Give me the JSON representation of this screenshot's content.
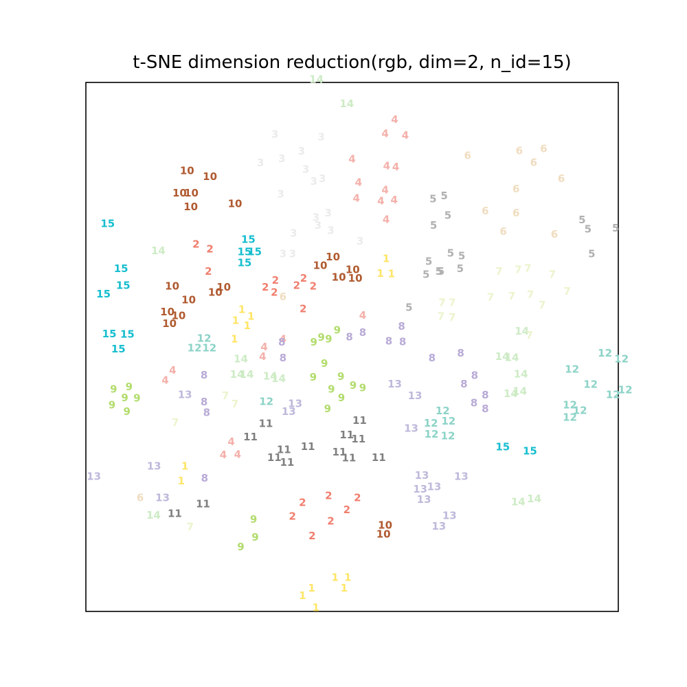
{
  "chart_data": {
    "type": "scatter",
    "title": "t-SNE dimension reduction(rgb, dim=2, n_id=15)",
    "xlabel": "",
    "ylabel": "",
    "xlim": [
      0,
      100
    ],
    "ylim": [
      0,
      100
    ],
    "grid": false,
    "legend": "none",
    "colors": {
      "1": "#ffe566",
      "2": "#f07e6e",
      "3": "#ebebeb",
      "4": "#f4b0aa",
      "5": "#b0b0b0",
      "6": "#f0ddc0",
      "7": "#ebf4cd",
      "8": "#b8aad6",
      "9": "#b2dc6c",
      "10": "#b05a30",
      "11": "#7f7f7f",
      "12": "#8cd3c7",
      "13": "#beb9db",
      "14": "#cdebc5",
      "15": "#17becf"
    },
    "points": [
      [
        "14",
        43.3,
        100.6
      ],
      [
        "14",
        49.0,
        96.0
      ],
      [
        "4",
        58.0,
        93.0
      ],
      [
        "4",
        56.2,
        90.3
      ],
      [
        "4",
        60.0,
        90.0
      ],
      [
        "4",
        50.0,
        85.5
      ],
      [
        "4",
        56.5,
        84.2
      ],
      [
        "4",
        58.2,
        84.0
      ],
      [
        "4",
        51.2,
        81.1
      ],
      [
        "4",
        56.2,
        79.7
      ],
      [
        "4",
        50.8,
        78.1
      ],
      [
        "4",
        55.4,
        77.6
      ],
      [
        "4",
        57.9,
        77.8
      ],
      [
        "4",
        56.4,
        74.1
      ],
      [
        "3",
        35.5,
        90.2
      ],
      [
        "3",
        44.2,
        89.7
      ],
      [
        "3",
        40.5,
        87.0
      ],
      [
        "3",
        32.8,
        84.8
      ],
      [
        "3",
        36.8,
        85.6
      ],
      [
        "3",
        41.3,
        83.6
      ],
      [
        "3",
        44.4,
        81.8
      ],
      [
        "3",
        42.8,
        81.3
      ],
      [
        "3",
        36.6,
        78.9
      ],
      [
        "3",
        45.5,
        75.3
      ],
      [
        "3",
        43.2,
        74.5
      ],
      [
        "3",
        39.0,
        71.5
      ],
      [
        "3",
        43.6,
        73.0
      ],
      [
        "3",
        46.0,
        72.0
      ],
      [
        "3",
        51.5,
        70.0
      ],
      [
        "3",
        37.0,
        67.6
      ],
      [
        "3",
        38.8,
        67.6
      ],
      [
        "3",
        46.8,
        63.1
      ],
      [
        "3",
        48.3,
        63.3
      ],
      [
        "6",
        71.7,
        86.2
      ],
      [
        "6",
        81.4,
        87.1
      ],
      [
        "6",
        86.0,
        87.5
      ],
      [
        "6",
        84.1,
        84.9
      ],
      [
        "6",
        89.3,
        81.8
      ],
      [
        "6",
        80.8,
        79.9
      ],
      [
        "6",
        75.0,
        75.7
      ],
      [
        "6",
        80.8,
        75.3
      ],
      [
        "6",
        78.4,
        71.8
      ],
      [
        "6",
        88.0,
        71.3
      ],
      [
        "6",
        37.0,
        59.5
      ],
      [
        "6",
        10.2,
        21.5
      ],
      [
        "10",
        19.0,
        83.3
      ],
      [
        "10",
        23.3,
        82.2
      ],
      [
        "10",
        17.6,
        79.1
      ],
      [
        "10",
        19.8,
        79.1
      ],
      [
        "10",
        19.7,
        76.5
      ],
      [
        "10",
        28.0,
        77.1
      ],
      [
        "10",
        46.4,
        67.0
      ],
      [
        "10",
        44.0,
        65.4
      ],
      [
        "10",
        50.1,
        64.6
      ],
      [
        "10",
        47.5,
        63.2
      ],
      [
        "10",
        50.6,
        63.0
      ],
      [
        "10",
        16.2,
        61.5
      ],
      [
        "10",
        25.9,
        61.3
      ],
      [
        "10",
        24.3,
        60.3
      ],
      [
        "10",
        19.3,
        58.9
      ],
      [
        "10",
        15.3,
        56.6
      ],
      [
        "10",
        17.4,
        55.9
      ],
      [
        "10",
        15.7,
        54.4
      ],
      [
        "10",
        56.2,
        16.3
      ],
      [
        "10",
        55.9,
        14.6
      ],
      [
        "5",
        65.2,
        78.0
      ],
      [
        "5",
        67.3,
        78.6
      ],
      [
        "5",
        68.0,
        74.9
      ],
      [
        "5",
        65.3,
        73.0
      ],
      [
        "5",
        93.2,
        74.0
      ],
      [
        "5",
        94.3,
        72.3
      ],
      [
        "5",
        99.5,
        72.5
      ],
      [
        "5",
        68.5,
        67.7
      ],
      [
        "5",
        70.6,
        67.2
      ],
      [
        "5",
        64.4,
        66.2
      ],
      [
        "5",
        66.3,
        64.3
      ],
      [
        "5",
        70.3,
        64.8
      ],
      [
        "5",
        63.9,
        63.7
      ],
      [
        "5",
        66.7,
        64.3
      ],
      [
        "5",
        60.7,
        57.5
      ],
      [
        "5",
        95.0,
        67.6
      ],
      [
        "15",
        4.1,
        73.3
      ],
      [
        "15",
        30.5,
        70.3
      ],
      [
        "15",
        29.8,
        68.0
      ],
      [
        "15",
        31.7,
        68.0
      ],
      [
        "15",
        29.8,
        65.9
      ],
      [
        "15",
        6.6,
        64.8
      ],
      [
        "15",
        7.0,
        61.6
      ],
      [
        "15",
        3.3,
        60.0
      ],
      [
        "15",
        4.4,
        52.5
      ],
      [
        "15",
        7.8,
        52.4
      ],
      [
        "15",
        6.1,
        49.6
      ],
      [
        "15",
        78.3,
        31.1
      ],
      [
        "15",
        83.4,
        30.3
      ],
      [
        "14",
        13.6,
        68.2
      ],
      [
        "14",
        81.9,
        53.0
      ],
      [
        "14",
        78.2,
        48.2
      ],
      [
        "14",
        80.0,
        48.0
      ],
      [
        "14",
        29.1,
        47.7
      ],
      [
        "14",
        28.4,
        44.8
      ],
      [
        "14",
        30.2,
        44.8
      ],
      [
        "14",
        34.6,
        44.5
      ],
      [
        "14",
        36.2,
        44.0
      ],
      [
        "14",
        81.7,
        44.9
      ],
      [
        "14",
        79.8,
        41.2
      ],
      [
        "14",
        81.5,
        41.6
      ],
      [
        "14",
        81.2,
        20.7
      ],
      [
        "14",
        84.2,
        21.3
      ],
      [
        "14",
        12.7,
        18.2
      ],
      [
        "2",
        20.7,
        69.4
      ],
      [
        "2",
        23.3,
        68.5
      ],
      [
        "2",
        23.0,
        64.3
      ],
      [
        "2",
        33.7,
        61.3
      ],
      [
        "2",
        35.6,
        62.6
      ],
      [
        "2",
        35.4,
        60.3
      ],
      [
        "2",
        39.6,
        61.6
      ],
      [
        "2",
        40.9,
        63.0
      ],
      [
        "2",
        42.7,
        61.5
      ],
      [
        "2",
        40.8,
        57.2
      ],
      [
        "2",
        51.0,
        21.5
      ],
      [
        "2",
        45.6,
        21.9
      ],
      [
        "2",
        40.7,
        20.6
      ],
      [
        "2",
        49.0,
        19.2
      ],
      [
        "2",
        38.8,
        18.0
      ],
      [
        "2",
        46.0,
        17.1
      ],
      [
        "2",
        42.5,
        14.3
      ],
      [
        "1",
        56.4,
        66.7
      ],
      [
        "1",
        55.3,
        63.9
      ],
      [
        "1",
        57.4,
        63.8
      ],
      [
        "1",
        29.3,
        57.1
      ],
      [
        "1",
        31.0,
        55.8
      ],
      [
        "1",
        28.1,
        55.0
      ],
      [
        "1",
        30.3,
        54.0
      ],
      [
        "1",
        27.9,
        51.5
      ],
      [
        "1",
        18.6,
        27.5
      ],
      [
        "1",
        17.9,
        24.7
      ],
      [
        "1",
        46.8,
        6.4
      ],
      [
        "1",
        49.2,
        6.4
      ],
      [
        "1",
        42.4,
        4.4
      ],
      [
        "1",
        48.5,
        4.4
      ],
      [
        "1",
        40.7,
        3.0
      ],
      [
        "1",
        43.2,
        0.7
      ],
      [
        "7",
        77.6,
        64.3
      ],
      [
        "7",
        81.2,
        64.6
      ],
      [
        "7",
        83.0,
        64.9
      ],
      [
        "7",
        87.6,
        63.7
      ],
      [
        "7",
        66.9,
        58.4
      ],
      [
        "7",
        68.8,
        58.4
      ],
      [
        "7",
        76.0,
        59.4
      ],
      [
        "7",
        80.0,
        59.6
      ],
      [
        "7",
        83.5,
        59.9
      ],
      [
        "7",
        90.4,
        60.5
      ],
      [
        "7",
        85.7,
        57.9
      ],
      [
        "7",
        66.7,
        55.8
      ],
      [
        "7",
        68.8,
        55.6
      ],
      [
        "7",
        83.3,
        52.2
      ],
      [
        "7",
        26.2,
        40.8
      ],
      [
        "7",
        28.0,
        39.2
      ],
      [
        "7",
        16.8,
        35.7
      ],
      [
        "7",
        19.6,
        16.0
      ],
      [
        "4",
        52.0,
        56.0
      ],
      [
        "4",
        37.0,
        51.5
      ],
      [
        "4",
        33.5,
        50.0
      ],
      [
        "4",
        33.2,
        48.2
      ],
      [
        "4",
        16.3,
        45.6
      ],
      [
        "4",
        14.9,
        43.7
      ],
      [
        "4",
        27.3,
        32.1
      ],
      [
        "4",
        25.8,
        29.6
      ],
      [
        "4",
        28.5,
        29.7
      ],
      [
        "9",
        45.6,
        51.5
      ],
      [
        "9",
        47.2,
        53.2
      ],
      [
        "9",
        42.8,
        50.9
      ],
      [
        "9",
        44.2,
        51.8
      ],
      [
        "9",
        44.8,
        46.9
      ],
      [
        "9",
        42.7,
        44.3
      ],
      [
        "9",
        47.9,
        44.4
      ],
      [
        "9",
        50.2,
        42.7
      ],
      [
        "9",
        52.0,
        42.3
      ],
      [
        "9",
        46.1,
        42.0
      ],
      [
        "9",
        48.0,
        40.4
      ],
      [
        "9",
        45.4,
        38.3
      ],
      [
        "9",
        5.2,
        42.0
      ],
      [
        "9",
        8.1,
        42.5
      ],
      [
        "9",
        7.3,
        40.4
      ],
      [
        "9",
        9.6,
        40.3
      ],
      [
        "9",
        4.9,
        39.0
      ],
      [
        "9",
        7.7,
        37.8
      ],
      [
        "9",
        31.5,
        17.4
      ],
      [
        "9",
        31.8,
        14.0
      ],
      [
        "9",
        29.1,
        12.2
      ],
      [
        "12",
        22.2,
        51.6
      ],
      [
        "12",
        20.4,
        49.8
      ],
      [
        "12",
        23.2,
        49.8
      ],
      [
        "12",
        97.5,
        48.8
      ],
      [
        "12",
        100.6,
        47.7
      ],
      [
        "12",
        91.3,
        45.8
      ],
      [
        "12",
        94.8,
        42.9
      ],
      [
        "12",
        101.3,
        41.9
      ],
      [
        "12",
        99.0,
        41.0
      ],
      [
        "12",
        33.9,
        39.7
      ],
      [
        "12",
        90.9,
        39.0
      ],
      [
        "12",
        92.8,
        38.0
      ],
      [
        "12",
        90.9,
        36.7
      ],
      [
        "12",
        67.0,
        37.9
      ],
      [
        "12",
        64.8,
        35.6
      ],
      [
        "12",
        68.1,
        36.0
      ],
      [
        "12",
        64.9,
        33.5
      ],
      [
        "12",
        68.0,
        33.2
      ],
      [
        "8",
        52.0,
        52.7
      ],
      [
        "8",
        36.8,
        50.9
      ],
      [
        "8",
        49.5,
        51.9
      ],
      [
        "8",
        59.3,
        53.9
      ],
      [
        "8",
        56.9,
        51.1
      ],
      [
        "8",
        59.5,
        51.0
      ],
      [
        "8",
        37.0,
        47.9
      ],
      [
        "8",
        65.0,
        47.9
      ],
      [
        "8",
        70.4,
        48.8
      ],
      [
        "8",
        22.2,
        44.7
      ],
      [
        "8",
        73.0,
        44.6
      ],
      [
        "8",
        71.0,
        43.0
      ],
      [
        "8",
        75.0,
        40.9
      ],
      [
        "8",
        22.2,
        39.6
      ],
      [
        "8",
        72.9,
        39.4
      ],
      [
        "8",
        75.0,
        38.3
      ],
      [
        "8",
        22.7,
        37.6
      ],
      [
        "8",
        22.3,
        25.2
      ],
      [
        "13",
        58.0,
        43.0
      ],
      [
        "13",
        18.6,
        41.0
      ],
      [
        "13",
        61.8,
        40.8
      ],
      [
        "13",
        39.3,
        39.3
      ],
      [
        "13",
        38.1,
        37.8
      ],
      [
        "13",
        61.1,
        34.6
      ],
      [
        "13",
        1.5,
        25.5
      ],
      [
        "13",
        12.8,
        27.5
      ],
      [
        "13",
        63.1,
        25.7
      ],
      [
        "13",
        70.5,
        25.5
      ],
      [
        "13",
        62.8,
        23.1
      ],
      [
        "13",
        65.4,
        23.6
      ],
      [
        "13",
        14.4,
        21.5
      ],
      [
        "13",
        63.5,
        21.2
      ],
      [
        "13",
        68.3,
        18.1
      ],
      [
        "13",
        66.3,
        16.1
      ],
      [
        "11",
        33.8,
        35.5
      ],
      [
        "11",
        51.4,
        36.1
      ],
      [
        "11",
        30.9,
        33.0
      ],
      [
        "11",
        49.0,
        33.4
      ],
      [
        "11",
        51.2,
        32.6
      ],
      [
        "11",
        37.2,
        30.6
      ],
      [
        "11",
        41.7,
        31.2
      ],
      [
        "11",
        47.6,
        30.1
      ],
      [
        "11",
        35.4,
        29.1
      ],
      [
        "11",
        37.8,
        28.2
      ],
      [
        "11",
        49.4,
        29.0
      ],
      [
        "11",
        55.0,
        29.1
      ],
      [
        "11",
        22.0,
        20.3
      ],
      [
        "11",
        16.7,
        18.5
      ]
    ]
  }
}
